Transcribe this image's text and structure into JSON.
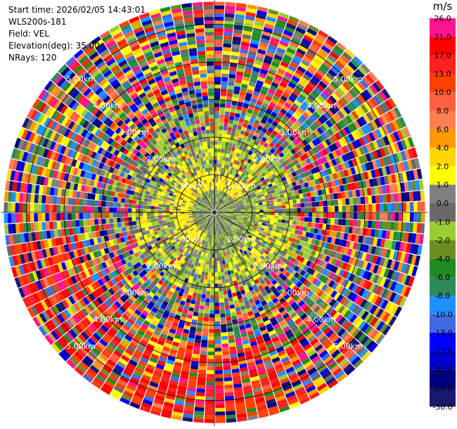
{
  "header": {
    "start_time": "Start time: 2026/02/05 14:43:01",
    "instrument": "WLS200s-181",
    "field": "Field: VEL",
    "elevation": "Elevation(deg): 35.00",
    "nrays": "NRays: 120"
  },
  "colorbar": {
    "unit": "m/s",
    "bins": [
      {
        "label": "26.0",
        "color": "#ff1493"
      },
      {
        "label": "21.0",
        "color": "#ff0000"
      },
      {
        "label": "17.0",
        "color": "#ff2020"
      },
      {
        "label": "13.0",
        "color": "#ff4000"
      },
      {
        "label": "10.0",
        "color": "#ff6040"
      },
      {
        "label": "8.0",
        "color": "#ff7f50"
      },
      {
        "label": "6.0",
        "color": "#ff9900"
      },
      {
        "label": "4.0",
        "color": "#ffd700"
      },
      {
        "label": "2.0",
        "color": "#ffff00"
      },
      {
        "label": "1.0",
        "color": "#808080"
      },
      {
        "label": "0.0",
        "color": "#696969"
      },
      {
        "label": "-1.0",
        "color": "#9acd32"
      },
      {
        "label": "-2.0",
        "color": "#6b8e23"
      },
      {
        "label": "-4.0",
        "color": "#228b22"
      },
      {
        "label": "-6.0",
        "color": "#2e8b57"
      },
      {
        "label": "-8.0",
        "color": "#1e90ff"
      },
      {
        "label": "-10.0",
        "color": "#4169e1"
      },
      {
        "label": "-13.0",
        "color": "#0000ff"
      },
      {
        "label": "-17.0",
        "color": "#0000cd"
      },
      {
        "label": "-21.0",
        "color": "#000080"
      },
      {
        "label": "-26.0",
        "color": "#191970"
      },
      {
        "label": "-30.0",
        "color": ""
      }
    ]
  },
  "chart_data": {
    "type": "heatmap",
    "field": "VEL",
    "units": "m/s",
    "projection": "polar PPI",
    "n_rays": 120,
    "elevation_deg": 35.0,
    "range_rings_km": [
      1.0,
      2.0,
      3.0,
      4.0,
      5.0
    ],
    "range_ring_labels": [
      "1.00km",
      "2.00km",
      "3.00km",
      "4.00km",
      "5.00km"
    ],
    "max_range_km": 5.6,
    "radial_spokes_deg": [
      0,
      30,
      60,
      90,
      120,
      150,
      180,
      210,
      240,
      270,
      300,
      330
    ],
    "color_levels": [
      26.0,
      21.0,
      17.0,
      13.0,
      10.0,
      8.0,
      6.0,
      4.0,
      2.0,
      1.0,
      0.0,
      -1.0,
      -2.0,
      -4.0,
      -6.0,
      -8.0,
      -10.0,
      -13.0,
      -17.0,
      -21.0,
      -26.0,
      -30.0
    ],
    "pattern_description_ranges_km": {
      "near_core": [
        0.0,
        0.6
      ],
      "positive_core": [
        0.6,
        1.1
      ],
      "mixed_ring": [
        1.1,
        2.2
      ],
      "noise_beyond": [
        2.2,
        5.6
      ]
    }
  }
}
